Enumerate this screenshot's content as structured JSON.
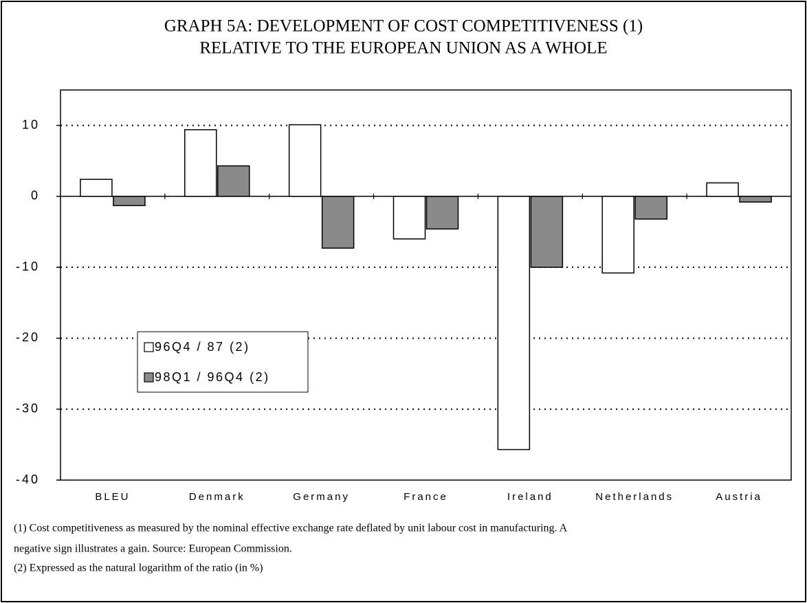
{
  "chart_data": {
    "type": "bar",
    "title": [
      "GRAPH 5A: DEVELOPMENT OF COST COMPETITIVENESS (1)",
      "RELATIVE TO THE EUROPEAN UNION AS A WHOLE"
    ],
    "categories": [
      "BLEU",
      "Denmark",
      "Germany",
      "France",
      "Ireland",
      "Netherlands",
      "Austria"
    ],
    "series": [
      {
        "name": "96Q4 / 87 (2)",
        "color": "#ffffff",
        "values": [
          2.4,
          9.4,
          10.1,
          -6.0,
          -35.7,
          -10.8,
          1.9
        ]
      },
      {
        "name": "98Q1 / 96Q4 (2)",
        "color": "#8a8a8a",
        "values": [
          -1.3,
          4.3,
          -7.3,
          -4.6,
          -10.0,
          -3.2,
          -0.8
        ]
      }
    ],
    "ylim": [
      -40,
      15
    ],
    "yticks": [
      -40,
      -30,
      -20,
      -10,
      0,
      10
    ],
    "grid": true,
    "legend": "center-left",
    "footnotes": [
      "(1) Cost competitiveness as measured by the nominal effective exchange rate deflated by unit labour cost in manufacturing. A",
      "negative sign illustrates a gain. Source: European Commission.",
      "(2) Expressed as the natural logarithm of the ratio (in %)"
    ]
  }
}
